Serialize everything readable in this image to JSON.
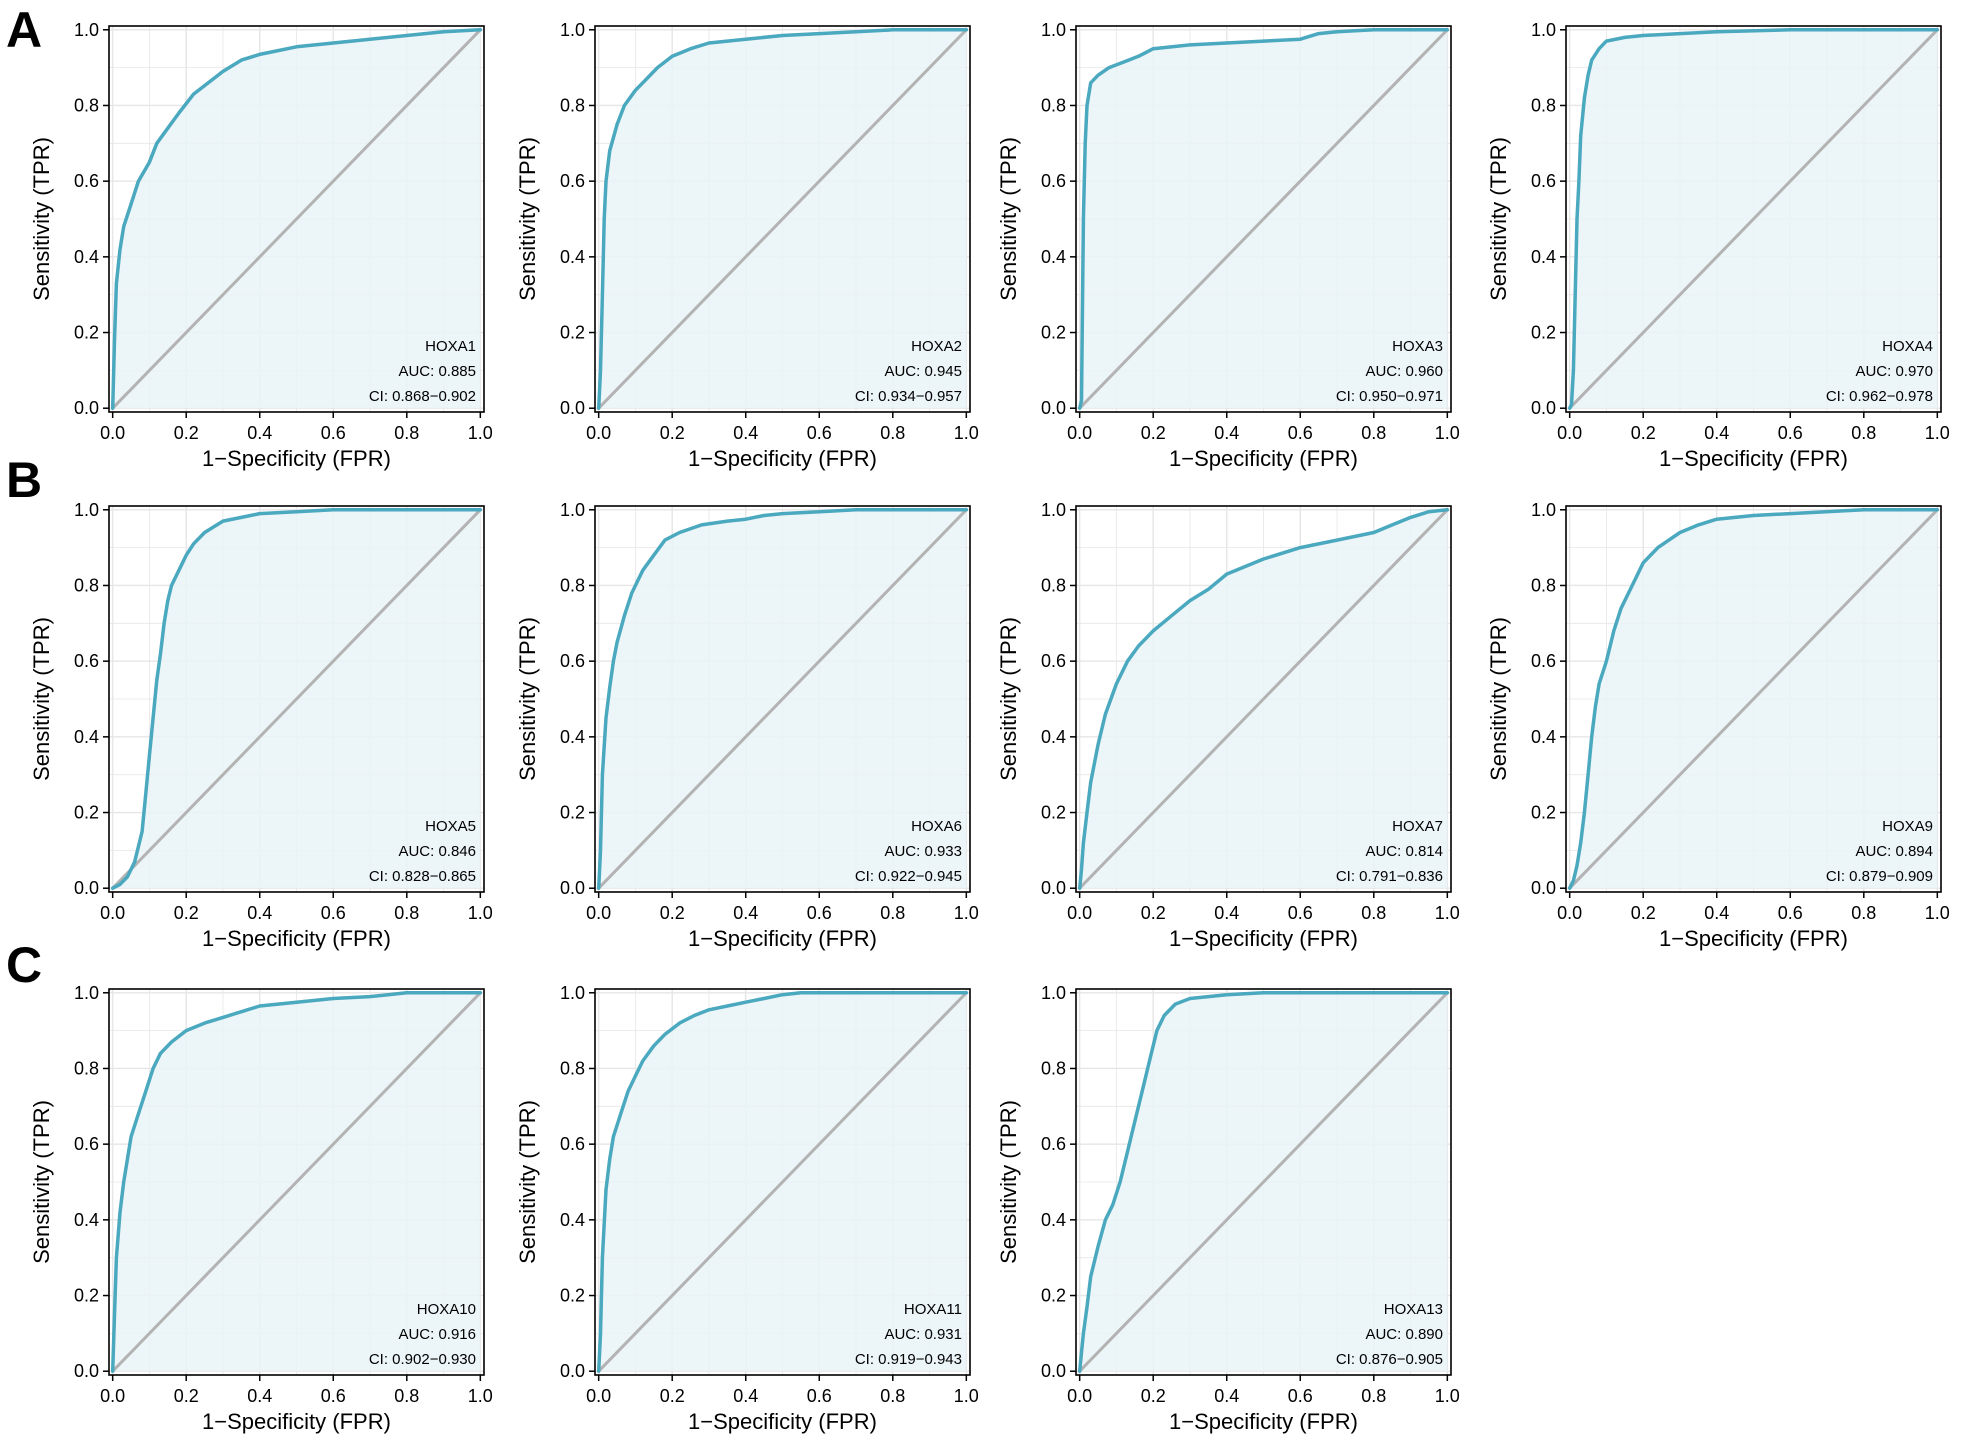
{
  "panel_labels": [
    "A",
    "B",
    "C"
  ],
  "colors": {
    "curve": "#4aa8bf",
    "fill": "#e9f3f7",
    "diagonal": "#b3b3b3",
    "grid": "#e6e6e6",
    "axis": "#000000"
  },
  "chart_data": [
    {
      "type": "line",
      "panel": "A",
      "title": "",
      "xlabel": "1−Specificity (FPR)",
      "ylabel": "Sensitivity (TPR)",
      "xlim": [
        0,
        1
      ],
      "ylim": [
        0,
        1
      ],
      "grid": true,
      "xticks": [
        "0.0",
        "0.2",
        "0.4",
        "0.6",
        "0.8",
        "1.0"
      ],
      "yticks": [
        "0.0",
        "0.2",
        "0.4",
        "0.6",
        "0.8",
        "1.0"
      ],
      "annotation": {
        "name": "HOXA1",
        "auc": "AUC: 0.885",
        "ci": "CI: 0.868−0.902"
      },
      "series": [
        {
          "name": "",
          "x": [
            0,
            0.005,
            0.01,
            0.02,
            0.03,
            0.05,
            0.07,
            0.1,
            0.12,
            0.15,
            0.18,
            0.22,
            0.26,
            0.3,
            0.35,
            0.4,
            0.45,
            0.5,
            0.6,
            0.7,
            0.8,
            0.9,
            1.0
          ],
          "y": [
            0,
            0.18,
            0.33,
            0.42,
            0.48,
            0.54,
            0.6,
            0.65,
            0.7,
            0.74,
            0.78,
            0.83,
            0.86,
            0.89,
            0.92,
            0.935,
            0.945,
            0.955,
            0.965,
            0.975,
            0.985,
            0.995,
            1.0
          ]
        }
      ]
    },
    {
      "type": "line",
      "panel": "A",
      "title": "",
      "xlabel": "1−Specificity (FPR)",
      "ylabel": "Sensitivity (TPR)",
      "xlim": [
        0,
        1
      ],
      "ylim": [
        0,
        1
      ],
      "grid": true,
      "xticks": [
        "0.0",
        "0.2",
        "0.4",
        "0.6",
        "0.8",
        "1.0"
      ],
      "yticks": [
        "0.0",
        "0.2",
        "0.4",
        "0.6",
        "0.8",
        "1.0"
      ],
      "annotation": {
        "name": "HOXA2",
        "auc": "AUC: 0.945",
        "ci": "CI: 0.934−0.957"
      },
      "series": [
        {
          "name": "",
          "x": [
            0,
            0.005,
            0.01,
            0.015,
            0.02,
            0.03,
            0.05,
            0.07,
            0.1,
            0.13,
            0.16,
            0.2,
            0.25,
            0.3,
            0.4,
            0.5,
            0.6,
            0.7,
            0.8,
            1.0
          ],
          "y": [
            0,
            0.1,
            0.3,
            0.5,
            0.6,
            0.68,
            0.75,
            0.8,
            0.84,
            0.87,
            0.9,
            0.93,
            0.95,
            0.965,
            0.975,
            0.985,
            0.99,
            0.995,
            1.0,
            1.0
          ]
        }
      ]
    },
    {
      "type": "line",
      "panel": "A",
      "title": "",
      "xlabel": "1−Specificity (FPR)",
      "ylabel": "Sensitivity (TPR)",
      "xlim": [
        0,
        1
      ],
      "ylim": [
        0,
        1
      ],
      "grid": true,
      "xticks": [
        "0.0",
        "0.2",
        "0.4",
        "0.6",
        "0.8",
        "1.0"
      ],
      "yticks": [
        "0.0",
        "0.2",
        "0.4",
        "0.6",
        "0.8",
        "1.0"
      ],
      "annotation": {
        "name": "HOXA3",
        "auc": "AUC: 0.960",
        "ci": "CI: 0.950−0.971"
      },
      "series": [
        {
          "name": "",
          "x": [
            0,
            0.005,
            0.008,
            0.01,
            0.015,
            0.02,
            0.03,
            0.05,
            0.08,
            0.12,
            0.16,
            0.2,
            0.3,
            0.4,
            0.5,
            0.6,
            0.65,
            0.7,
            0.8,
            1.0
          ],
          "y": [
            0,
            0.02,
            0.3,
            0.5,
            0.7,
            0.8,
            0.86,
            0.88,
            0.9,
            0.915,
            0.93,
            0.95,
            0.96,
            0.965,
            0.97,
            0.975,
            0.99,
            0.995,
            1.0,
            1.0
          ]
        }
      ]
    },
    {
      "type": "line",
      "panel": "A",
      "title": "",
      "xlabel": "1−Specificity (FPR)",
      "ylabel": "Sensitivity (TPR)",
      "xlim": [
        0,
        1
      ],
      "ylim": [
        0,
        1
      ],
      "grid": true,
      "xticks": [
        "0.0",
        "0.2",
        "0.4",
        "0.6",
        "0.8",
        "1.0"
      ],
      "yticks": [
        "0.0",
        "0.2",
        "0.4",
        "0.6",
        "0.8",
        "1.0"
      ],
      "annotation": {
        "name": "HOXA4",
        "auc": "AUC: 0.970",
        "ci": "CI: 0.962−0.978"
      },
      "series": [
        {
          "name": "",
          "x": [
            0,
            0.005,
            0.01,
            0.015,
            0.02,
            0.025,
            0.03,
            0.04,
            0.05,
            0.06,
            0.08,
            0.1,
            0.15,
            0.2,
            0.3,
            0.4,
            0.6,
            0.8,
            1.0
          ],
          "y": [
            0,
            0.01,
            0.1,
            0.3,
            0.5,
            0.6,
            0.72,
            0.82,
            0.88,
            0.92,
            0.95,
            0.97,
            0.98,
            0.985,
            0.99,
            0.995,
            1.0,
            1.0,
            1.0
          ]
        }
      ]
    },
    {
      "type": "line",
      "panel": "B",
      "title": "",
      "xlabel": "1−Specificity (FPR)",
      "ylabel": "Sensitivity (TPR)",
      "xlim": [
        0,
        1
      ],
      "ylim": [
        0,
        1
      ],
      "grid": true,
      "xticks": [
        "0.0",
        "0.2",
        "0.4",
        "0.6",
        "0.8",
        "1.0"
      ],
      "yticks": [
        "0.0",
        "0.2",
        "0.4",
        "0.6",
        "0.8",
        "1.0"
      ],
      "annotation": {
        "name": "HOXA5",
        "auc": "AUC: 0.846",
        "ci": "CI: 0.828−0.865"
      },
      "series": [
        {
          "name": "",
          "x": [
            0,
            0.02,
            0.04,
            0.06,
            0.08,
            0.09,
            0.1,
            0.11,
            0.12,
            0.13,
            0.14,
            0.15,
            0.16,
            0.18,
            0.2,
            0.22,
            0.25,
            0.3,
            0.35,
            0.4,
            0.5,
            0.6,
            0.7,
            0.8,
            1.0
          ],
          "y": [
            0,
            0.01,
            0.03,
            0.07,
            0.15,
            0.25,
            0.35,
            0.45,
            0.55,
            0.62,
            0.7,
            0.76,
            0.8,
            0.84,
            0.88,
            0.91,
            0.94,
            0.97,
            0.98,
            0.99,
            0.995,
            1.0,
            1.0,
            1.0,
            1.0
          ]
        }
      ]
    },
    {
      "type": "line",
      "panel": "B",
      "title": "",
      "xlabel": "1−Specificity (FPR)",
      "ylabel": "Sensitivity (TPR)",
      "xlim": [
        0,
        1
      ],
      "ylim": [
        0,
        1
      ],
      "grid": true,
      "xticks": [
        "0.0",
        "0.2",
        "0.4",
        "0.6",
        "0.8",
        "1.0"
      ],
      "yticks": [
        "0.0",
        "0.2",
        "0.4",
        "0.6",
        "0.8",
        "1.0"
      ],
      "annotation": {
        "name": "HOXA6",
        "auc": "AUC: 0.933",
        "ci": "CI: 0.922−0.945"
      },
      "series": [
        {
          "name": "",
          "x": [
            0,
            0.005,
            0.01,
            0.02,
            0.03,
            0.04,
            0.05,
            0.07,
            0.09,
            0.12,
            0.15,
            0.18,
            0.22,
            0.28,
            0.35,
            0.4,
            0.45,
            0.5,
            0.6,
            0.7,
            0.8,
            1.0
          ],
          "y": [
            0,
            0.1,
            0.3,
            0.45,
            0.53,
            0.6,
            0.65,
            0.72,
            0.78,
            0.84,
            0.88,
            0.92,
            0.94,
            0.96,
            0.97,
            0.975,
            0.985,
            0.99,
            0.995,
            1.0,
            1.0,
            1.0
          ]
        }
      ]
    },
    {
      "type": "line",
      "panel": "B",
      "title": "",
      "xlabel": "1−Specificity (FPR)",
      "ylabel": "Sensitivity (TPR)",
      "xlim": [
        0,
        1
      ],
      "ylim": [
        0,
        1
      ],
      "grid": true,
      "xticks": [
        "0.0",
        "0.2",
        "0.4",
        "0.6",
        "0.8",
        "1.0"
      ],
      "yticks": [
        "0.0",
        "0.2",
        "0.4",
        "0.6",
        "0.8",
        "1.0"
      ],
      "annotation": {
        "name": "HOXA7",
        "auc": "AUC: 0.814",
        "ci": "CI: 0.791−0.836"
      },
      "series": [
        {
          "name": "",
          "x": [
            0,
            0.005,
            0.01,
            0.02,
            0.03,
            0.05,
            0.07,
            0.1,
            0.13,
            0.16,
            0.2,
            0.25,
            0.3,
            0.35,
            0.4,
            0.5,
            0.6,
            0.7,
            0.8,
            0.85,
            0.9,
            0.95,
            1.0
          ],
          "y": [
            0,
            0.05,
            0.12,
            0.2,
            0.28,
            0.38,
            0.46,
            0.54,
            0.6,
            0.64,
            0.68,
            0.72,
            0.76,
            0.79,
            0.83,
            0.87,
            0.9,
            0.92,
            0.94,
            0.96,
            0.98,
            0.995,
            1.0
          ]
        }
      ]
    },
    {
      "type": "line",
      "panel": "B",
      "title": "",
      "xlabel": "1−Specificity (FPR)",
      "ylabel": "Sensitivity (TPR)",
      "xlim": [
        0,
        1
      ],
      "ylim": [
        0,
        1
      ],
      "grid": true,
      "xticks": [
        "0.0",
        "0.2",
        "0.4",
        "0.6",
        "0.8",
        "1.0"
      ],
      "yticks": [
        "0.0",
        "0.2",
        "0.4",
        "0.6",
        "0.8",
        "1.0"
      ],
      "annotation": {
        "name": "HOXA9",
        "auc": "AUC: 0.894",
        "ci": "CI: 0.879−0.909"
      },
      "series": [
        {
          "name": "",
          "x": [
            0,
            0.01,
            0.02,
            0.03,
            0.04,
            0.05,
            0.06,
            0.07,
            0.08,
            0.1,
            0.12,
            0.14,
            0.17,
            0.2,
            0.24,
            0.3,
            0.35,
            0.4,
            0.5,
            0.6,
            0.8,
            1.0
          ],
          "y": [
            0,
            0.02,
            0.06,
            0.12,
            0.2,
            0.3,
            0.4,
            0.48,
            0.54,
            0.6,
            0.68,
            0.74,
            0.8,
            0.86,
            0.9,
            0.94,
            0.96,
            0.975,
            0.985,
            0.99,
            1.0,
            1.0
          ]
        }
      ]
    },
    {
      "type": "line",
      "panel": "C",
      "title": "",
      "xlabel": "1−Specificity (FPR)",
      "ylabel": "Sensitivity (TPR)",
      "xlim": [
        0,
        1
      ],
      "ylim": [
        0,
        1
      ],
      "grid": true,
      "xticks": [
        "0.0",
        "0.2",
        "0.4",
        "0.6",
        "0.8",
        "1.0"
      ],
      "yticks": [
        "0.0",
        "0.2",
        "0.4",
        "0.6",
        "0.8",
        "1.0"
      ],
      "annotation": {
        "name": "HOXA10",
        "auc": "AUC: 0.916",
        "ci": "CI: 0.902−0.930"
      },
      "series": [
        {
          "name": "",
          "x": [
            0,
            0.005,
            0.01,
            0.02,
            0.03,
            0.04,
            0.05,
            0.07,
            0.09,
            0.11,
            0.13,
            0.16,
            0.2,
            0.25,
            0.3,
            0.35,
            0.4,
            0.5,
            0.6,
            0.7,
            0.8,
            1.0
          ],
          "y": [
            0,
            0.15,
            0.3,
            0.42,
            0.5,
            0.56,
            0.62,
            0.68,
            0.74,
            0.8,
            0.84,
            0.87,
            0.9,
            0.92,
            0.935,
            0.95,
            0.965,
            0.975,
            0.985,
            0.99,
            1.0,
            1.0
          ]
        }
      ]
    },
    {
      "type": "line",
      "panel": "C",
      "title": "",
      "xlabel": "1−Specificity (FPR)",
      "ylabel": "Sensitivity (TPR)",
      "xlim": [
        0,
        1
      ],
      "ylim": [
        0,
        1
      ],
      "grid": true,
      "xticks": [
        "0.0",
        "0.2",
        "0.4",
        "0.6",
        "0.8",
        "1.0"
      ],
      "yticks": [
        "0.0",
        "0.2",
        "0.4",
        "0.6",
        "0.8",
        "1.0"
      ],
      "annotation": {
        "name": "HOXA11",
        "auc": "AUC: 0.931",
        "ci": "CI: 0.919−0.943"
      },
      "series": [
        {
          "name": "",
          "x": [
            0,
            0.005,
            0.01,
            0.02,
            0.03,
            0.04,
            0.06,
            0.08,
            0.1,
            0.12,
            0.15,
            0.18,
            0.22,
            0.26,
            0.3,
            0.35,
            0.4,
            0.45,
            0.5,
            0.55,
            0.7,
            0.8,
            1.0
          ],
          "y": [
            0,
            0.1,
            0.3,
            0.48,
            0.56,
            0.62,
            0.68,
            0.74,
            0.78,
            0.82,
            0.86,
            0.89,
            0.92,
            0.94,
            0.955,
            0.965,
            0.975,
            0.985,
            0.995,
            1.0,
            1.0,
            1.0,
            1.0
          ]
        }
      ]
    },
    {
      "type": "line",
      "panel": "C",
      "title": "",
      "xlabel": "1−Specificity (FPR)",
      "ylabel": "Sensitivity (TPR)",
      "xlim": [
        0,
        1
      ],
      "ylim": [
        0,
        1
      ],
      "grid": true,
      "xticks": [
        "0.0",
        "0.2",
        "0.4",
        "0.6",
        "0.8",
        "1.0"
      ],
      "yticks": [
        "0.0",
        "0.2",
        "0.4",
        "0.6",
        "0.8",
        "1.0"
      ],
      "annotation": {
        "name": "HOXA13",
        "auc": "AUC: 0.890",
        "ci": "CI: 0.876−0.905"
      },
      "series": [
        {
          "name": "",
          "x": [
            0,
            0.005,
            0.01,
            0.02,
            0.03,
            0.05,
            0.07,
            0.09,
            0.11,
            0.13,
            0.15,
            0.17,
            0.19,
            0.21,
            0.23,
            0.26,
            0.3,
            0.35,
            0.4,
            0.5,
            0.6,
            0.8,
            1.0
          ],
          "y": [
            0,
            0.05,
            0.1,
            0.17,
            0.25,
            0.33,
            0.4,
            0.44,
            0.5,
            0.58,
            0.66,
            0.74,
            0.82,
            0.9,
            0.94,
            0.97,
            0.985,
            0.99,
            0.995,
            1.0,
            1.0,
            1.0,
            1.0
          ]
        }
      ]
    }
  ]
}
